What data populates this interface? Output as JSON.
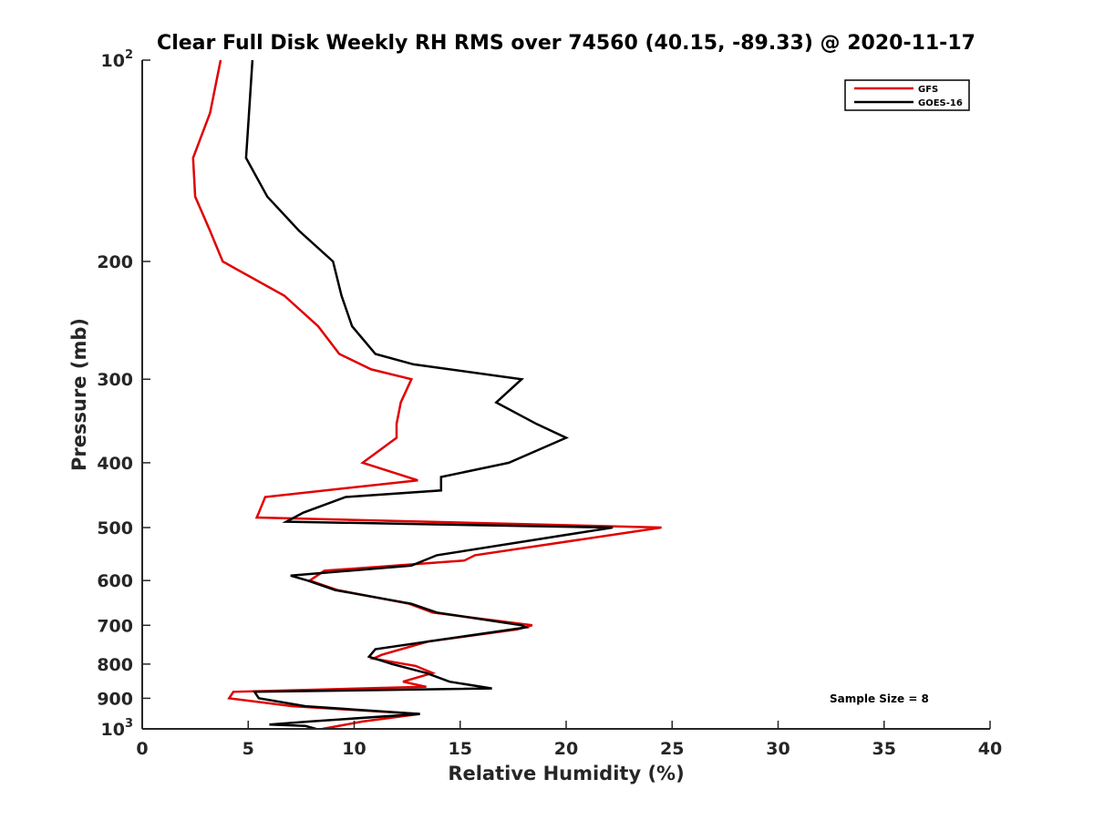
{
  "chart_data": {
    "type": "line",
    "title": "Clear Full Disk Weekly RH RMS over 74560 (40.15, -89.33) @ 2020-11-17",
    "xlabel": "Relative Humidity (%)",
    "ylabel": "Pressure (mb)",
    "xlim": [
      0,
      40
    ],
    "ylim": [
      100,
      1000
    ],
    "y_scale": "log",
    "y_reversed": true,
    "grid": false,
    "legend_position": "top-right",
    "x_ticks": [
      "0",
      "5",
      "10",
      "15",
      "20",
      "25",
      "30",
      "35",
      "40"
    ],
    "y_ticks": [
      {
        "value": 100,
        "base": "10",
        "exp": "2"
      },
      {
        "value": 200,
        "label": "200"
      },
      {
        "value": 300,
        "label": "300"
      },
      {
        "value": 400,
        "label": "400"
      },
      {
        "value": 500,
        "label": "500"
      },
      {
        "value": 600,
        "label": "600"
      },
      {
        "value": 700,
        "label": "700"
      },
      {
        "value": 800,
        "label": "800"
      },
      {
        "value": 900,
        "label": "900"
      },
      {
        "value": 1000,
        "base": "10",
        "exp": "3"
      }
    ],
    "annotation": "Sample Size = 8",
    "series": [
      {
        "name": "GFS",
        "color": "#e00000",
        "points": [
          [
            3.7,
            100
          ],
          [
            3.2,
            120
          ],
          [
            2.4,
            140
          ],
          [
            2.5,
            160
          ],
          [
            3.2,
            180
          ],
          [
            3.8,
            200
          ],
          [
            6.7,
            225
          ],
          [
            8.3,
            250
          ],
          [
            9.3,
            275
          ],
          [
            10.8,
            290
          ],
          [
            12.7,
            300
          ],
          [
            12.2,
            325
          ],
          [
            12.0,
            350
          ],
          [
            12.0,
            367
          ],
          [
            10.4,
            400
          ],
          [
            13.0,
            425
          ],
          [
            5.8,
            450
          ],
          [
            5.5,
            475
          ],
          [
            5.4,
            483
          ],
          [
            24.5,
            500
          ],
          [
            15.7,
            550
          ],
          [
            15.2,
            560
          ],
          [
            8.6,
            580
          ],
          [
            7.9,
            600
          ],
          [
            9.2,
            620
          ],
          [
            12.6,
            650
          ],
          [
            13.7,
            670
          ],
          [
            18.4,
            700
          ],
          [
            17.7,
            710
          ],
          [
            13.5,
            740
          ],
          [
            11.3,
            775
          ],
          [
            10.9,
            785
          ],
          [
            12.9,
            805
          ],
          [
            13.7,
            825
          ],
          [
            12.3,
            850
          ],
          [
            13.4,
            865
          ],
          [
            4.3,
            880
          ],
          [
            4.1,
            900
          ],
          [
            7.1,
            925
          ],
          [
            13.1,
            950
          ],
          [
            10.4,
            975
          ],
          [
            8.5,
            1000
          ]
        ]
      },
      {
        "name": "GOES-16",
        "color": "#000000",
        "points": [
          [
            5.2,
            100
          ],
          [
            5.0,
            125
          ],
          [
            4.9,
            140
          ],
          [
            5.9,
            160
          ],
          [
            7.4,
            180
          ],
          [
            9.0,
            200
          ],
          [
            9.4,
            225
          ],
          [
            9.9,
            250
          ],
          [
            11.0,
            275
          ],
          [
            12.8,
            285
          ],
          [
            17.9,
            300
          ],
          [
            16.7,
            325
          ],
          [
            18.6,
            350
          ],
          [
            20.0,
            367
          ],
          [
            17.3,
            400
          ],
          [
            14.1,
            420
          ],
          [
            14.1,
            440
          ],
          [
            9.6,
            450
          ],
          [
            7.6,
            475
          ],
          [
            6.8,
            490
          ],
          [
            22.2,
            500
          ],
          [
            13.9,
            550
          ],
          [
            12.7,
            570
          ],
          [
            7.0,
            590
          ],
          [
            7.8,
            600
          ],
          [
            9.1,
            620
          ],
          [
            12.7,
            650
          ],
          [
            13.9,
            670
          ],
          [
            17.9,
            700
          ],
          [
            18.1,
            705
          ],
          [
            11.0,
            760
          ],
          [
            10.7,
            780
          ],
          [
            11.8,
            800
          ],
          [
            13.4,
            825
          ],
          [
            14.5,
            850
          ],
          [
            16.5,
            870
          ],
          [
            5.3,
            880
          ],
          [
            5.5,
            900
          ],
          [
            7.7,
            925
          ],
          [
            13.1,
            950
          ],
          [
            7.9,
            975
          ],
          [
            6.0,
            985
          ],
          [
            7.7,
            990
          ],
          [
            8.2,
            1000
          ]
        ]
      }
    ]
  }
}
